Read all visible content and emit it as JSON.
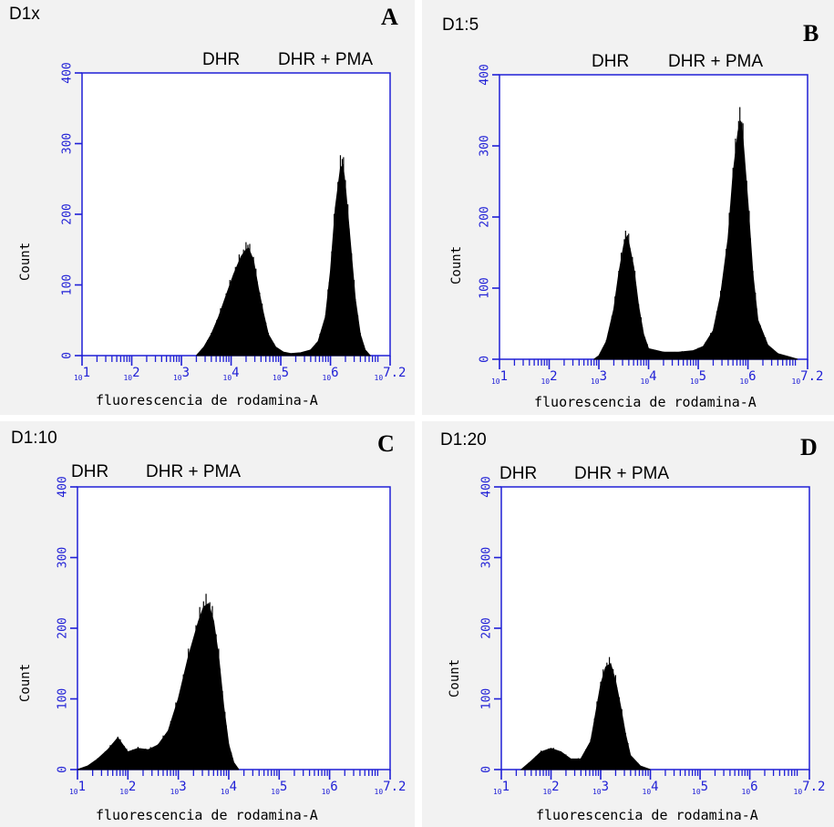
{
  "colors": {
    "axis": "#1f1fd6",
    "fill": "#000000",
    "panel_bg": "#f2f2f2",
    "plot_bg": "#ffffff"
  },
  "chart_data": [
    {
      "type": "histogram",
      "panel_letter": "A",
      "sample": "D1x",
      "legend": [
        "DHR",
        "DHR + PMA"
      ],
      "xlabel": "fluorescencia de rodamina-A",
      "ylabel": "Count",
      "x_scale": "log10",
      "xlim": [
        1,
        7.2
      ],
      "ylim": [
        0,
        400
      ],
      "yticks": [
        0,
        100,
        200,
        300,
        400
      ],
      "xticks": [
        "10^1",
        "10^2",
        "10^3",
        "10^4",
        "10^5",
        "10^6",
        "10^7.2"
      ],
      "x": [
        3.3,
        3.45,
        3.6,
        3.75,
        3.9,
        4.05,
        4.2,
        4.3,
        4.35,
        4.45,
        4.55,
        4.65,
        4.75,
        4.9,
        5.05,
        5.2,
        5.4,
        5.6,
        5.75,
        5.9,
        6.0,
        6.1,
        6.2,
        6.25,
        6.3,
        6.4,
        6.5,
        6.6,
        6.7,
        6.8
      ],
      "y": [
        0,
        12,
        30,
        55,
        85,
        115,
        140,
        150,
        152,
        135,
        95,
        60,
        30,
        12,
        5,
        3,
        4,
        8,
        20,
        55,
        120,
        210,
        265,
        270,
        240,
        160,
        80,
        30,
        8,
        0
      ]
    },
    {
      "type": "histogram",
      "panel_letter": "B",
      "sample": "D1:5",
      "legend": [
        "DHR",
        "DHR + PMA"
      ],
      "xlabel": "fluorescencia de rodamina-A",
      "ylabel": "Count",
      "x_scale": "log10",
      "xlim": [
        1,
        7.2
      ],
      "ylim": [
        0,
        400
      ],
      "yticks": [
        0,
        100,
        200,
        300,
        400
      ],
      "xticks": [
        "10^1",
        "10^2",
        "10^3",
        "10^4",
        "10^5",
        "10^6",
        "10^7.2"
      ],
      "x": [
        2.9,
        3.0,
        3.15,
        3.3,
        3.4,
        3.5,
        3.55,
        3.6,
        3.7,
        3.8,
        3.9,
        4.0,
        4.3,
        4.6,
        4.9,
        5.1,
        5.3,
        5.45,
        5.6,
        5.7,
        5.8,
        5.85,
        5.9,
        6.0,
        6.1,
        6.2,
        6.4,
        6.6,
        6.8,
        7.0
      ],
      "y": [
        0,
        5,
        25,
        70,
        120,
        160,
        172,
        165,
        130,
        75,
        35,
        15,
        10,
        10,
        12,
        18,
        40,
        90,
        170,
        260,
        320,
        335,
        310,
        220,
        120,
        55,
        20,
        8,
        4,
        0
      ]
    },
    {
      "type": "histogram",
      "panel_letter": "C",
      "sample": "D1:10",
      "legend": [
        "DHR",
        "DHR + PMA"
      ],
      "xlabel": "fluorescencia de rodamina-A",
      "ylabel": "Count",
      "x_scale": "log10",
      "xlim": [
        1,
        7.2
      ],
      "ylim": [
        0,
        400
      ],
      "yticks": [
        0,
        100,
        200,
        300,
        400
      ],
      "xticks": [
        "10^1",
        "10^2",
        "10^3",
        "10^4",
        "10^5",
        "10^6",
        "10^7.2"
      ],
      "x": [
        1.0,
        1.2,
        1.4,
        1.6,
        1.8,
        1.9,
        2.0,
        2.2,
        2.4,
        2.6,
        2.8,
        3.0,
        3.2,
        3.4,
        3.5,
        3.6,
        3.7,
        3.8,
        3.9,
        4.0,
        4.1,
        4.2
      ],
      "y": [
        0,
        5,
        15,
        28,
        45,
        35,
        25,
        30,
        28,
        35,
        55,
        100,
        160,
        210,
        230,
        235,
        210,
        160,
        90,
        35,
        10,
        0
      ]
    },
    {
      "type": "histogram",
      "panel_letter": "D",
      "sample": "D1:20",
      "legend": [
        "DHR",
        "DHR + PMA"
      ],
      "xlabel": "fluorescencia de rodamina-A",
      "ylabel": "Count",
      "x_scale": "log10",
      "xlim": [
        1,
        7.2
      ],
      "ylim": [
        0,
        400
      ],
      "yticks": [
        0,
        100,
        200,
        300,
        400
      ],
      "xticks": [
        "10^1",
        "10^2",
        "10^3",
        "10^4",
        "10^5",
        "10^6",
        "10^7.2"
      ],
      "x": [
        1.4,
        1.6,
        1.8,
        2.0,
        2.2,
        2.4,
        2.6,
        2.8,
        2.9,
        3.0,
        3.1,
        3.2,
        3.3,
        3.4,
        3.5,
        3.6,
        3.8,
        4.0
      ],
      "y": [
        0,
        12,
        25,
        30,
        25,
        15,
        15,
        40,
        80,
        120,
        145,
        150,
        125,
        90,
        50,
        20,
        5,
        0
      ]
    }
  ]
}
